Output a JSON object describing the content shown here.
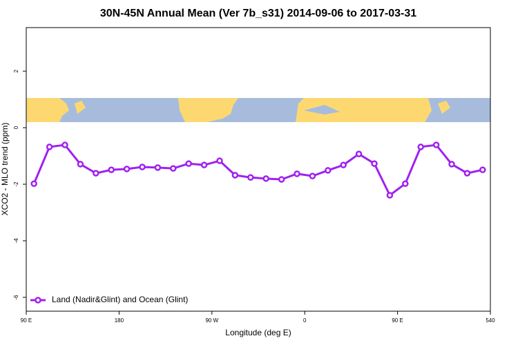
{
  "chart_data": {
    "type": "line",
    "title": "30N-45N Annual Mean (Ver 7b_s31)   2014-09-06 to 2017-03-31",
    "x_label": "Longitude (deg E)",
    "y_label": "XCO2 - MLO trend (ppm)",
    "x": [
      97.5,
      112.5,
      127.5,
      142.5,
      157.5,
      172.5,
      187.5,
      202.5,
      217.5,
      232.5,
      247.5,
      262.5,
      277.5,
      292.5,
      307.5,
      322.5,
      337.5,
      352.5,
      367.5,
      382.5,
      397.5,
      412.5,
      427.5,
      442.5,
      457.5,
      472.5,
      487.5,
      502.5,
      517.5,
      532.5
    ],
    "series": [
      {
        "name": "Land (Nadir&Glint) and Ocean (Glint)",
        "color": "#a020f0",
        "values": [
          -1.98,
          -0.68,
          -0.61,
          -1.29,
          -1.61,
          -1.49,
          -1.46,
          -1.39,
          -1.41,
          -1.44,
          -1.27,
          -1.32,
          -1.17,
          -1.68,
          -1.76,
          -1.8,
          -1.83,
          -1.63,
          -1.71,
          -1.51,
          -1.32,
          -0.93,
          -1.27,
          -2.39,
          -1.98,
          -0.68,
          -0.61,
          -1.29,
          -1.61,
          -1.49
        ]
      }
    ],
    "xlim": [
      90,
      540
    ],
    "xticks": [
      {
        "value": 90,
        "label": "90 E"
      },
      180,
      {
        "value": 270,
        "label": "90 W"
      },
      {
        "value": 360,
        "label": "0"
      },
      {
        "value": 450,
        "label": "90 E"
      },
      540
    ],
    "ylim": [
      -6.49,
      3.54
    ],
    "yticks": [
      -6,
      -4,
      -2,
      0,
      2
    ],
    "legend": "bottom-left"
  }
}
